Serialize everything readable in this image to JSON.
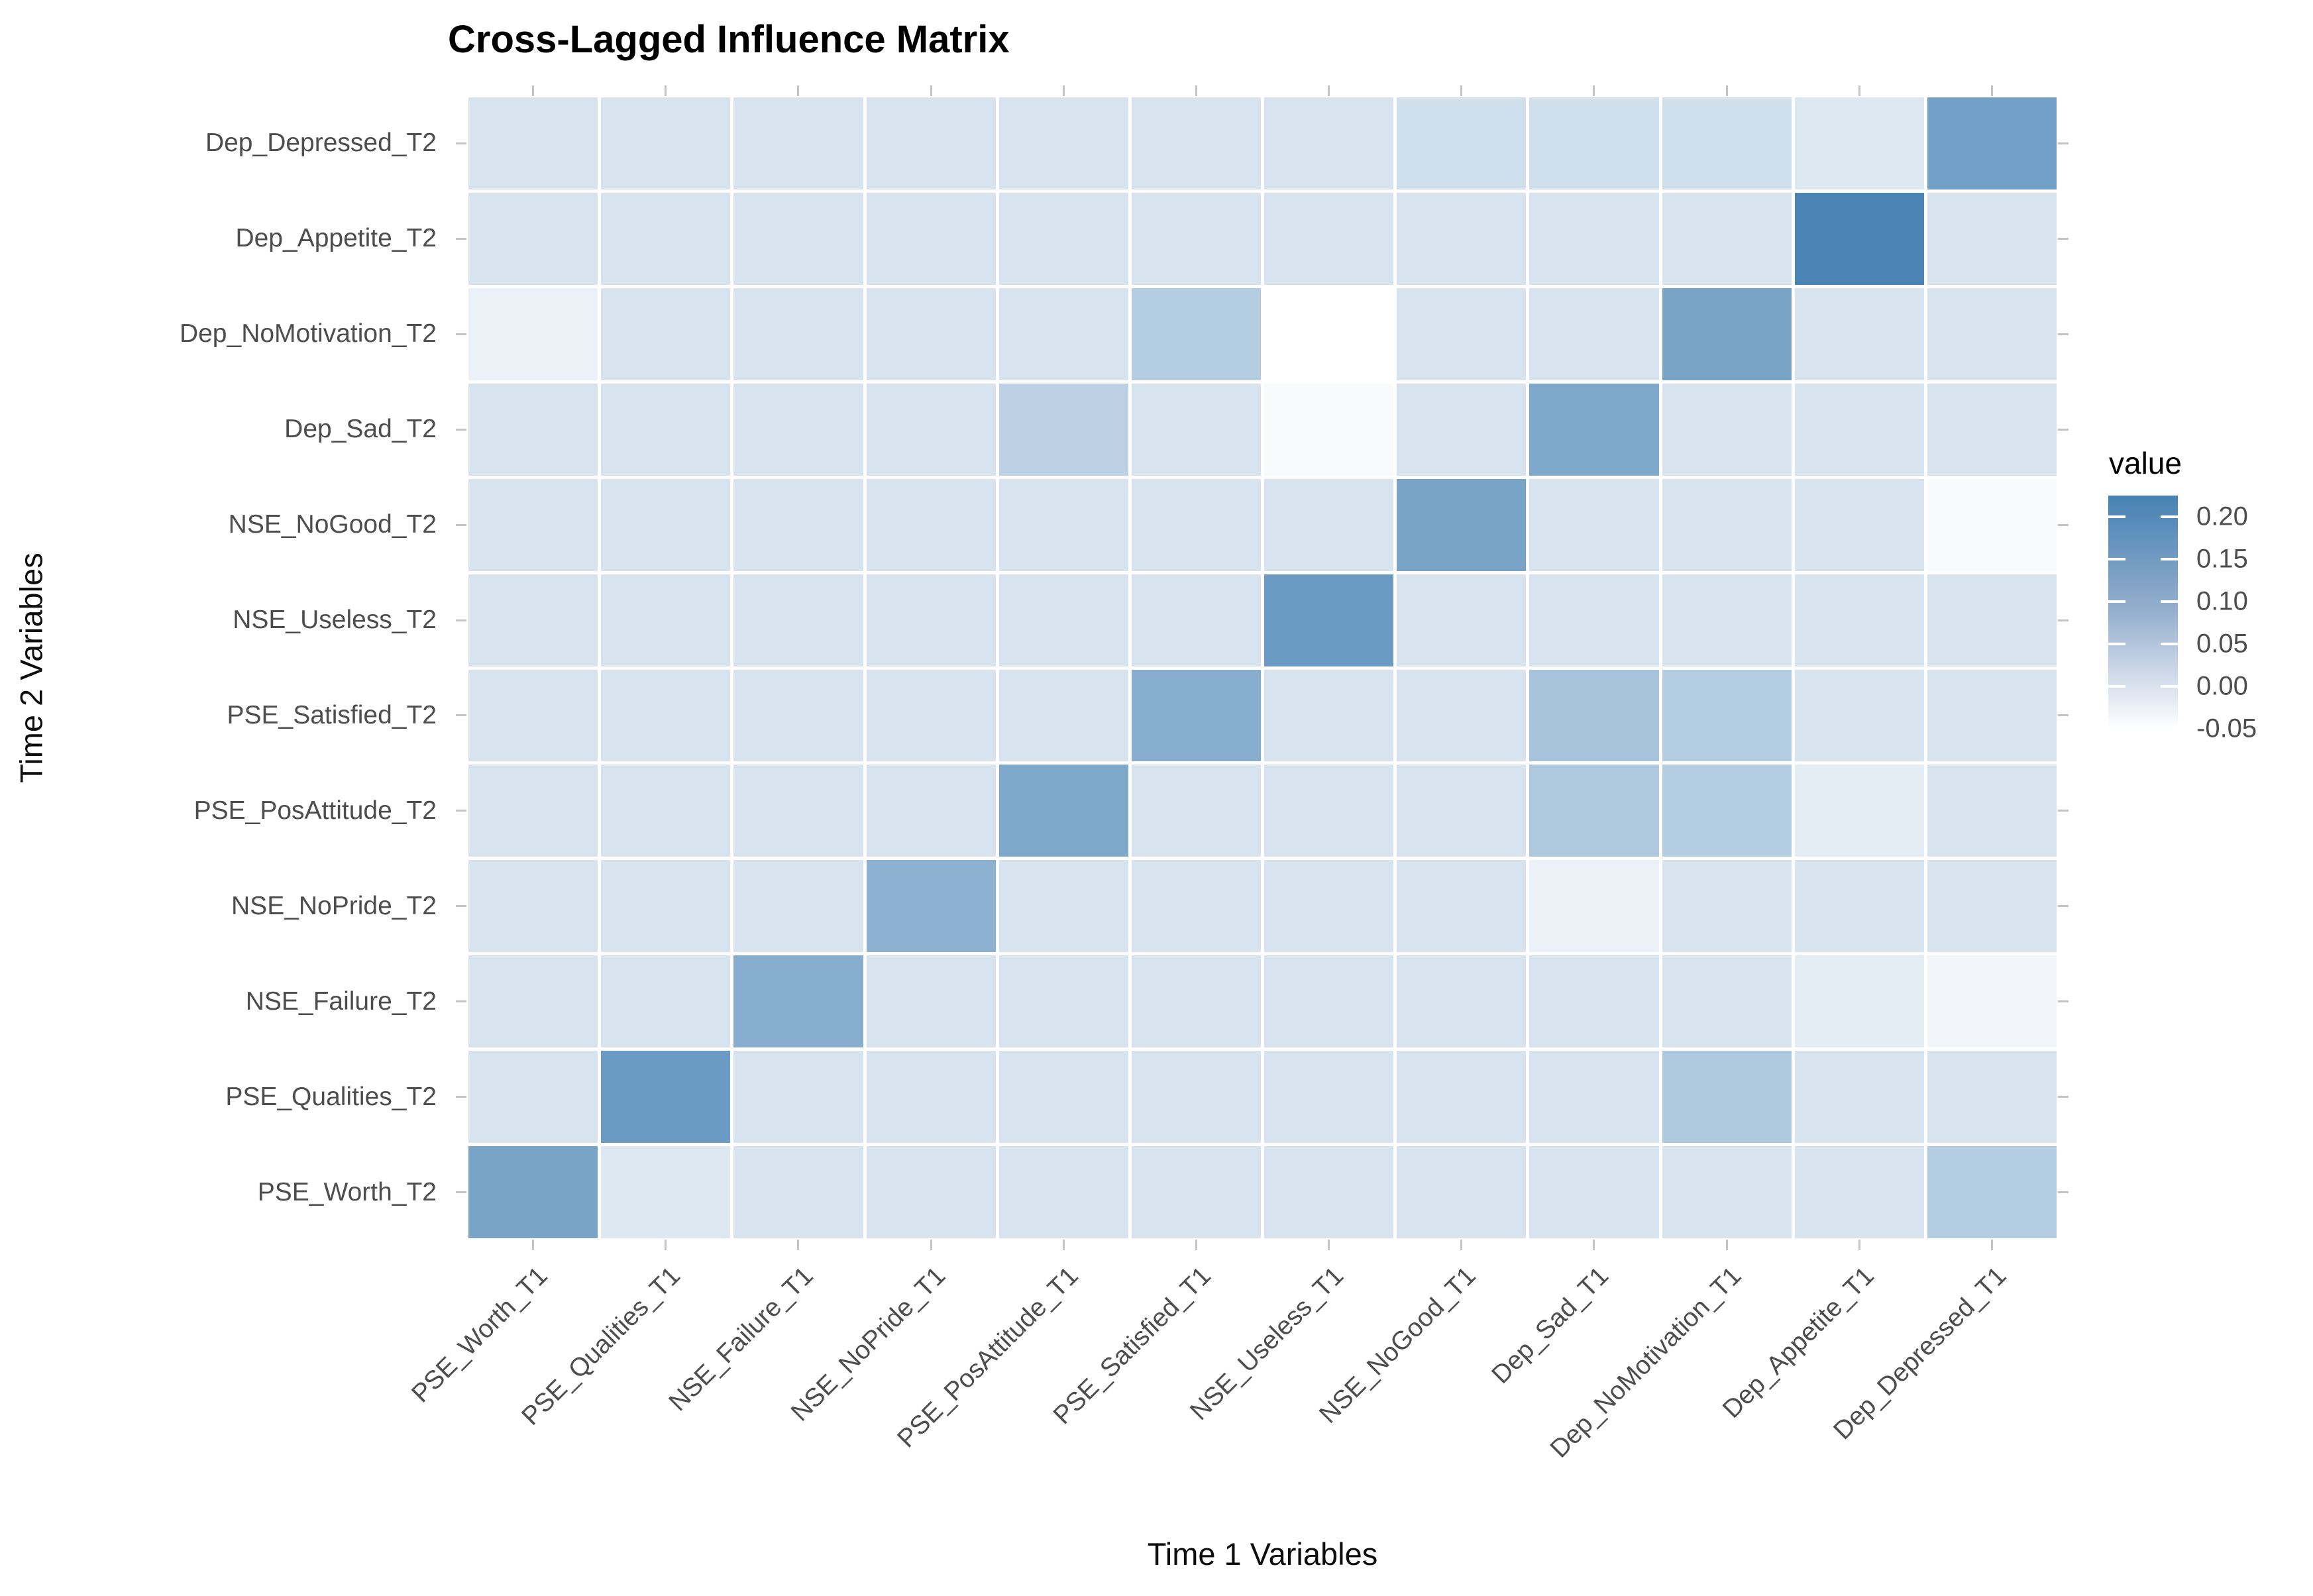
{
  "title": "Cross-Lagged Influence Matrix",
  "x_axis_title": "Time 1 Variables",
  "y_axis_title": "Time 2 Variables",
  "legend": {
    "title": "value",
    "ticks": [
      "0.20",
      "0.15",
      "0.10",
      "0.05",
      "0.00",
      "-0.05"
    ]
  },
  "chart_data": {
    "type": "heatmap",
    "title": "Cross-Lagged Influence Matrix",
    "xlabel": "Time 1 Variables",
    "ylabel": "Time 2 Variables",
    "legend_title": "value",
    "legend_tick_values": [
      0.2,
      0.15,
      0.1,
      0.05,
      0.0,
      -0.05
    ],
    "legend_position": "right",
    "grid": false,
    "color_scale": {
      "low": "#ffffff",
      "high": "#4682b4",
      "vmin": -0.05,
      "vmax": 0.225
    },
    "x_categories": [
      "PSE_Worth_T1",
      "PSE_Qualities_T1",
      "NSE_Failure_T1",
      "NSE_NoPride_T1",
      "PSE_PosAttitude_T1",
      "PSE_Satisfied_T1",
      "NSE_Useless_T1",
      "NSE_NoGood_T1",
      "Dep_Sad_T1",
      "Dep_NoMotivation_T1",
      "Dep_Appetite_T1",
      "Dep_Depressed_T1"
    ],
    "y_categories_top_to_bottom": [
      "Dep_Depressed_T2",
      "Dep_Appetite_T2",
      "Dep_NoMotivation_T2",
      "Dep_Sad_T2",
      "NSE_NoGood_T2",
      "NSE_Useless_T2",
      "PSE_Satisfied_T2",
      "PSE_PosAttitude_T2",
      "NSE_NoPride_T2",
      "NSE_Failure_T2",
      "PSE_Qualities_T2",
      "PSE_Worth_T2"
    ],
    "values_rows_top_to_bottom": [
      [
        0.01,
        0.01,
        0.01,
        0.01,
        0.01,
        0.01,
        0.01,
        0.02,
        0.02,
        0.02,
        0.0,
        0.16
      ],
      [
        0.01,
        0.01,
        0.01,
        0.01,
        0.01,
        0.01,
        0.01,
        0.01,
        0.01,
        0.01,
        0.22,
        0.01
      ],
      [
        -0.02,
        0.01,
        0.01,
        0.01,
        0.01,
        0.06,
        -0.05,
        0.01,
        0.01,
        0.15,
        0.01,
        0.01
      ],
      [
        0.01,
        0.01,
        0.01,
        0.01,
        0.05,
        0.01,
        -0.04,
        0.01,
        0.14,
        0.01,
        0.01,
        0.01
      ],
      [
        0.01,
        0.01,
        0.01,
        0.01,
        0.01,
        0.01,
        0.01,
        0.15,
        0.01,
        0.01,
        0.01,
        -0.04
      ],
      [
        0.01,
        0.01,
        0.01,
        0.01,
        0.01,
        0.01,
        0.17,
        0.01,
        0.01,
        0.01,
        0.01,
        0.01
      ],
      [
        0.01,
        0.01,
        0.01,
        0.01,
        0.01,
        0.13,
        0.01,
        0.01,
        0.08,
        0.06,
        0.01,
        0.01
      ],
      [
        0.01,
        0.01,
        0.01,
        0.01,
        0.14,
        0.01,
        0.01,
        0.01,
        0.07,
        0.06,
        -0.01,
        0.01
      ],
      [
        0.01,
        0.01,
        0.01,
        0.12,
        0.01,
        0.01,
        0.01,
        0.01,
        -0.02,
        0.01,
        0.01,
        0.01
      ],
      [
        0.01,
        0.01,
        0.13,
        0.01,
        0.01,
        0.01,
        0.01,
        0.01,
        0.01,
        0.01,
        -0.01,
        -0.03
      ],
      [
        0.01,
        0.17,
        0.01,
        0.01,
        0.01,
        0.01,
        0.01,
        0.01,
        0.01,
        0.07,
        0.01,
        0.01
      ],
      [
        0.15,
        0.0,
        0.01,
        0.01,
        0.01,
        0.01,
        0.01,
        0.01,
        0.01,
        0.01,
        0.01,
        0.06
      ]
    ]
  }
}
